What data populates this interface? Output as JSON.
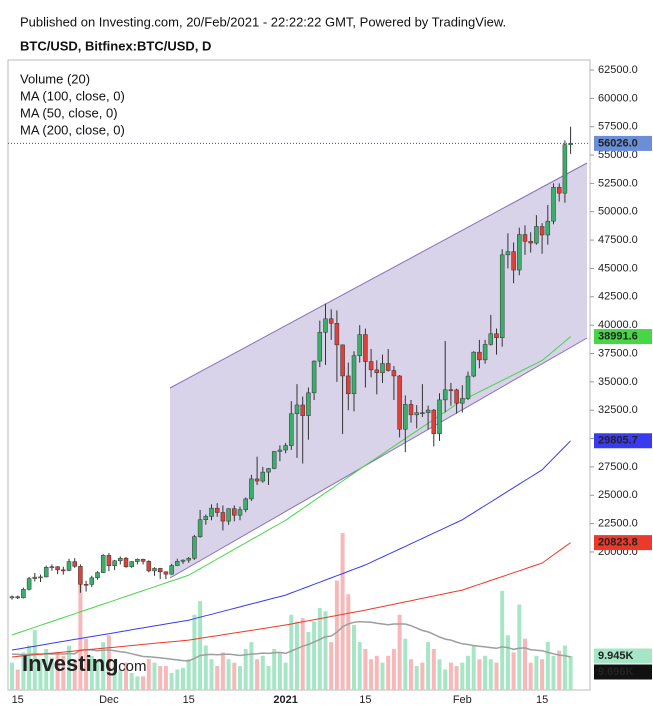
{
  "chart_data": {
    "type": "candlestick",
    "source": "Published on Investing.com, 20/Feb/2021 - 22:22:22 GMT, Powered by TradingView.",
    "title": "BTC/USD, Bitfinex:BTC/USD, D",
    "logo": "Investing",
    "logo_suffix": ".com",
    "categories": [
      null,
      "15",
      null,
      null,
      null,
      null,
      null,
      null,
      null,
      null,
      null,
      null,
      null,
      null,
      null,
      null,
      null,
      "Dec",
      null,
      null,
      null,
      null,
      null,
      null,
      null,
      null,
      null,
      null,
      null,
      null,
      null,
      "15",
      null,
      null,
      null,
      null,
      null,
      null,
      null,
      null,
      null,
      null,
      null,
      null,
      null,
      null,
      null,
      null,
      "2021",
      null,
      null,
      null,
      null,
      null,
      null,
      null,
      null,
      null,
      null,
      null,
      null,
      null,
      "15",
      null,
      null,
      null,
      null,
      null,
      null,
      null,
      null,
      null,
      null,
      null,
      null,
      null,
      null,
      null,
      null,
      "Feb",
      null,
      null,
      null,
      null,
      null,
      null,
      null,
      null,
      null,
      null,
      null,
      null,
      null,
      "15",
      null,
      null,
      null,
      null,
      null
    ],
    "ohlc": [
      [
        15950,
        16150,
        15800,
        16050
      ],
      [
        16050,
        16150,
        15850,
        15950
      ],
      [
        15950,
        16850,
        15900,
        16700
      ],
      [
        16700,
        17800,
        16600,
        17650
      ],
      [
        17650,
        18150,
        17400,
        17780
      ],
      [
        17780,
        18000,
        17350,
        17800
      ],
      [
        17800,
        18800,
        17750,
        18650
      ],
      [
        18650,
        18900,
        18350,
        18700
      ],
      [
        18700,
        18750,
        18050,
        18420
      ],
      [
        18420,
        18700,
        18000,
        18370
      ],
      [
        18370,
        19400,
        18300,
        19150
      ],
      [
        19150,
        19450,
        18600,
        18730
      ],
      [
        18730,
        18900,
        16400,
        17150
      ],
      [
        17150,
        17450,
        16500,
        17140
      ],
      [
        17140,
        17900,
        16900,
        17720
      ],
      [
        17720,
        18300,
        17550,
        18180
      ],
      [
        18180,
        19800,
        18150,
        19700
      ],
      [
        19700,
        19900,
        18300,
        18780
      ],
      [
        18780,
        19300,
        18400,
        19220
      ],
      [
        19220,
        19600,
        18900,
        19450
      ],
      [
        19450,
        19550,
        18600,
        18700
      ],
      [
        18700,
        19200,
        18600,
        19150
      ],
      [
        19150,
        19420,
        18900,
        19360
      ],
      [
        19360,
        19400,
        18900,
        19170
      ],
      [
        19170,
        19270,
        18200,
        18330
      ],
      [
        18330,
        18650,
        17900,
        18550
      ],
      [
        18550,
        18600,
        17600,
        18250
      ],
      [
        18250,
        18300,
        17600,
        18040
      ],
      [
        18040,
        18950,
        18000,
        18800
      ],
      [
        18800,
        19400,
        18750,
        19170
      ],
      [
        19170,
        19350,
        18950,
        19280
      ],
      [
        19280,
        19550,
        19050,
        19440
      ],
      [
        19440,
        21500,
        19300,
        21350
      ],
      [
        21350,
        23700,
        21250,
        22840
      ],
      [
        22840,
        23300,
        22400,
        23130
      ],
      [
        23130,
        24200,
        22800,
        23860
      ],
      [
        23860,
        24300,
        23100,
        23480
      ],
      [
        23480,
        24100,
        21900,
        22720
      ],
      [
        22720,
        23850,
        22400,
        23820
      ],
      [
        23820,
        24100,
        22700,
        23240
      ],
      [
        23240,
        24000,
        22800,
        23730
      ],
      [
        23730,
        24800,
        23500,
        24680
      ],
      [
        24680,
        26800,
        24500,
        26440
      ],
      [
        26440,
        28400,
        25900,
        26250
      ],
      [
        26250,
        27500,
        26100,
        27040
      ],
      [
        27040,
        27400,
        25900,
        27360
      ],
      [
        27360,
        28900,
        27300,
        28860
      ],
      [
        28860,
        29400,
        28000,
        28990
      ],
      [
        28990,
        29600,
        28700,
        29380
      ],
      [
        29380,
        33300,
        29000,
        32190
      ],
      [
        32190,
        34800,
        28300,
        32960
      ],
      [
        32960,
        33700,
        27800,
        32020
      ],
      [
        32020,
        34500,
        29900,
        34030
      ],
      [
        34030,
        36900,
        33400,
        36830
      ],
      [
        36830,
        40400,
        36300,
        39370
      ],
      [
        39370,
        41900,
        36500,
        40560
      ],
      [
        40560,
        41400,
        38700,
        40160
      ],
      [
        40160,
        41300,
        35000,
        38260
      ],
      [
        38260,
        38300,
        30400,
        35520
      ],
      [
        35520,
        36700,
        32500,
        33950
      ],
      [
        33950,
        37700,
        32400,
        37310
      ],
      [
        37310,
        40000,
        36700,
        39170
      ],
      [
        39170,
        39700,
        34500,
        36790
      ],
      [
        36790,
        37900,
        35400,
        36060
      ],
      [
        36060,
        36900,
        33900,
        35800
      ],
      [
        35800,
        37400,
        34900,
        36620
      ],
      [
        36620,
        37900,
        35900,
        36000
      ],
      [
        36000,
        36400,
        33400,
        35520
      ],
      [
        35520,
        35600,
        30100,
        30820
      ],
      [
        30820,
        33800,
        28800,
        33010
      ],
      [
        33010,
        33400,
        31400,
        32090
      ],
      [
        32090,
        32950,
        30900,
        32280
      ],
      [
        32280,
        34800,
        31900,
        32270
      ],
      [
        32270,
        32900,
        30800,
        32510
      ],
      [
        32510,
        32600,
        29300,
        30430
      ],
      [
        30430,
        34000,
        29800,
        33410
      ],
      [
        33410,
        38600,
        32300,
        34300
      ],
      [
        34300,
        34900,
        32900,
        34290
      ],
      [
        34290,
        34400,
        32200,
        33120
      ],
      [
        33120,
        34700,
        32300,
        33530
      ],
      [
        33530,
        35900,
        33400,
        35510
      ],
      [
        35510,
        37700,
        35400,
        37620
      ],
      [
        37620,
        38700,
        36200,
        36940
      ],
      [
        36940,
        38700,
        36600,
        38300
      ],
      [
        38300,
        40900,
        38200,
        39240
      ],
      [
        39240,
        39700,
        37400,
        38890
      ],
      [
        38890,
        46700,
        38100,
        46200
      ],
      [
        46200,
        48100,
        45000,
        46480
      ],
      [
        46480,
        47300,
        43700,
        44860
      ],
      [
        44860,
        48600,
        44400,
        47990
      ],
      [
        47990,
        48800,
        46200,
        47390
      ],
      [
        47390,
        48200,
        46400,
        47240
      ],
      [
        47240,
        49700,
        47100,
        48700
      ],
      [
        48700,
        49000,
        46300,
        47950
      ],
      [
        47950,
        50600,
        47100,
        49170
      ],
      [
        49170,
        52500,
        48900,
        52160
      ],
      [
        52160,
        52500,
        50900,
        51640
      ],
      [
        51640,
        56300,
        50800,
        55920
      ],
      [
        55920,
        57500,
        55100,
        56026
      ]
    ],
    "last_label": "56026.0",
    "last_color": "#6a8fd8",
    "up_color": "#3cae6c",
    "down_color": "#e0403a",
    "ylim": [
      7826,
      63382
    ],
    "yticks": [
      {
        "value": 20000,
        "label": "20000.0"
      },
      {
        "value": 22500,
        "label": "22500.0"
      },
      {
        "value": 25000,
        "label": "25000.0"
      },
      {
        "value": 27500,
        "label": "27500.0"
      },
      {
        "value": 30000,
        "label": "30000.0"
      },
      {
        "value": 32500,
        "label": "32500.0"
      },
      {
        "value": 35000,
        "label": "35000.0"
      },
      {
        "value": 37500,
        "label": "37500.0"
      },
      {
        "value": 40000,
        "label": "40000.0"
      },
      {
        "value": 42500,
        "label": "42500.0"
      },
      {
        "value": 45000,
        "label": "45000.0"
      },
      {
        "value": 47500,
        "label": "47500.0"
      },
      {
        "value": 50000,
        "label": "50000.0"
      },
      {
        "value": 52500,
        "label": "52500.0"
      },
      {
        "value": 55000,
        "label": "55000.0"
      },
      {
        "value": 57500,
        "label": "57500.0"
      },
      {
        "value": 60000,
        "label": "60000.0"
      },
      {
        "value": 62500,
        "label": "62500.0"
      }
    ],
    "volume": {
      "name": "Volume (20)",
      "axis": "y2",
      "up_color": "#a6e6c6",
      "down_color": "#f6b8b8",
      "ma_color": "#9e9e9e",
      "values": [
        8000,
        6000,
        11000,
        13000,
        17500,
        9000,
        12000,
        9500,
        11000,
        10000,
        13000,
        9000,
        33500,
        15000,
        10000,
        9000,
        14000,
        16000,
        8000,
        6000,
        8000,
        5000,
        4000,
        4000,
        9000,
        8000,
        7000,
        7000,
        5000,
        6000,
        6500,
        9000,
        22000,
        26000,
        13000,
        9000,
        7000,
        11000,
        9000,
        8000,
        7000,
        12000,
        14000,
        9000,
        10000,
        7000,
        12000,
        11000,
        8000,
        22000,
        20000,
        21000,
        17000,
        20000,
        24000,
        23000,
        14000,
        32000,
        45900,
        28000,
        19000,
        14000,
        12000,
        9000,
        10000,
        8000,
        10000,
        12000,
        22000,
        15000,
        9000,
        7000,
        8000,
        14000,
        12000,
        9000,
        6000,
        8000,
        7000,
        8000,
        10000,
        13000,
        9000,
        10000,
        9000,
        8000,
        29000,
        16000,
        11000,
        25000,
        15000,
        8000,
        10000,
        9000,
        14000,
        10000,
        11500,
        13000,
        9945
      ],
      "last_label": "9.945K",
      "ma": [
        10500,
        10400,
        10300,
        10400,
        10600,
        10500,
        10600,
        10500,
        10600,
        10500,
        10700,
        10600,
        11700,
        11800,
        11700,
        11500,
        11600,
        11700,
        11500,
        11200,
        11000,
        10600,
        10200,
        9800,
        9700,
        9600,
        9400,
        9200,
        9000,
        8800,
        8600,
        8500,
        9200,
        10100,
        10300,
        10400,
        10300,
        10400,
        10500,
        10300,
        10100,
        10300,
        10500,
        10600,
        10800,
        10700,
        10900,
        11000,
        10700,
        11400,
        12100,
        12800,
        13300,
        14000,
        14800,
        15600,
        15800,
        16900,
        18500,
        19300,
        19800,
        20000,
        19900,
        19800,
        19500,
        19300,
        19100,
        19300,
        19300,
        19300,
        18800,
        18100,
        17400,
        17000,
        16300,
        15500,
        14900,
        14600,
        14000,
        13500,
        13300,
        13000,
        12800,
        12600,
        12400,
        12200,
        12600,
        12400,
        11900,
        12200,
        12300,
        11800,
        11600,
        11500,
        11000,
        10600,
        10200,
        10000,
        9696
      ],
      "ma_label": "9.696K"
    },
    "y2lim": [
      0,
      184270
    ],
    "ma_series": [
      {
        "name": "MA (100, close, 0)",
        "color": "#3a3af0",
        "label_text_color": "#ffffff",
        "last_label": "29805.7",
        "values": [
          11350,
          11435,
          11520,
          11605,
          11690,
          11775,
          11860,
          11945,
          12030,
          12115,
          12200,
          12285,
          12370,
          12455,
          12540,
          12625,
          12710,
          12795,
          12880,
          12965,
          13050,
          13135,
          13220,
          13305,
          13390,
          13475,
          13560,
          13645,
          13730,
          13815,
          13900,
          13985,
          14115,
          14245,
          14375,
          14505,
          14635,
          14765,
          14895,
          15025,
          15155,
          15285,
          15415,
          15545,
          15675,
          15805,
          15935,
          16065,
          16195,
          16385,
          16575,
          16765,
          16955,
          17145,
          17335,
          17525,
          17715,
          17905,
          18095,
          18285,
          18475,
          18665,
          18855,
          19089,
          19323,
          19557,
          19791,
          20025,
          20259,
          20493,
          20727,
          20961,
          21195,
          21429,
          21663,
          21897,
          22131,
          22365,
          22599,
          22833,
          23148,
          23463,
          23778,
          24093,
          24408,
          24723,
          25038,
          25353,
          25668,
          25983,
          26298,
          26613,
          26928,
          27243,
          27760,
          28270,
          28780,
          29290,
          29805.7
        ]
      },
      {
        "name": "MA (50, close, 0)",
        "color": "#46d646",
        "label_text_color": "#111111",
        "last_label": "38991.6",
        "values": [
          12680,
          12850,
          13020,
          13190,
          13360,
          13530,
          13700,
          13870,
          14040,
          14210,
          14380,
          14550,
          14720,
          14890,
          15060,
          15230,
          15400,
          15570,
          15740,
          15910,
          16080,
          16250,
          16420,
          16590,
          16760,
          16930,
          17100,
          17270,
          17440,
          17610,
          17780,
          17950,
          18235,
          18520,
          18805,
          19090,
          19375,
          19660,
          19945,
          20230,
          20515,
          20800,
          21085,
          21370,
          21655,
          21940,
          22225,
          22510,
          22795,
          23141,
          23487,
          23833,
          24179,
          24525,
          24871,
          25217,
          25563,
          25909,
          26255,
          26601,
          26947,
          27293,
          27639,
          27976,
          28313,
          28650,
          28987,
          29324,
          29661,
          29998,
          30335,
          30672,
          31009,
          31346,
          31683,
          32020,
          32357,
          32694,
          33031,
          33368,
          33619,
          33870,
          34121,
          34372,
          34623,
          34874,
          35125,
          35376,
          35627,
          35878,
          36129,
          36380,
          36631,
          36882,
          37300,
          37720,
          38140,
          38560,
          38991.6
        ]
      },
      {
        "name": "MA (200, close, 0)",
        "color": "#ec3a2a",
        "label_text_color": "#ffffff",
        "last_label": "20823.8",
        "values": [
          10740,
          10788,
          10836,
          10884,
          10932,
          10980,
          11028,
          11076,
          11124,
          11172,
          11220,
          11268,
          11316,
          11364,
          11412,
          11460,
          11508,
          11556,
          11604,
          11652,
          11700,
          11748,
          11796,
          11844,
          11892,
          11940,
          11988,
          12036,
          12084,
          12132,
          12180,
          12228,
          12306,
          12384,
          12462,
          12540,
          12618,
          12696,
          12774,
          12852,
          12930,
          13008,
          13086,
          13164,
          13242,
          13320,
          13398,
          13476,
          13554,
          13648,
          13742,
          13836,
          13930,
          14024,
          14118,
          14212,
          14306,
          14400,
          14494,
          14588,
          14682,
          14776,
          14870,
          14974,
          15078,
          15182,
          15286,
          15390,
          15494,
          15598,
          15702,
          15806,
          15910,
          16014,
          16118,
          16222,
          16326,
          16430,
          16534,
          16638,
          16808,
          16978,
          17148,
          17318,
          17488,
          17658,
          17828,
          17998,
          18168,
          18338,
          18508,
          18678,
          18848,
          19018,
          19380,
          19740,
          20100,
          20460,
          20823.8
        ]
      }
    ]
  }
}
